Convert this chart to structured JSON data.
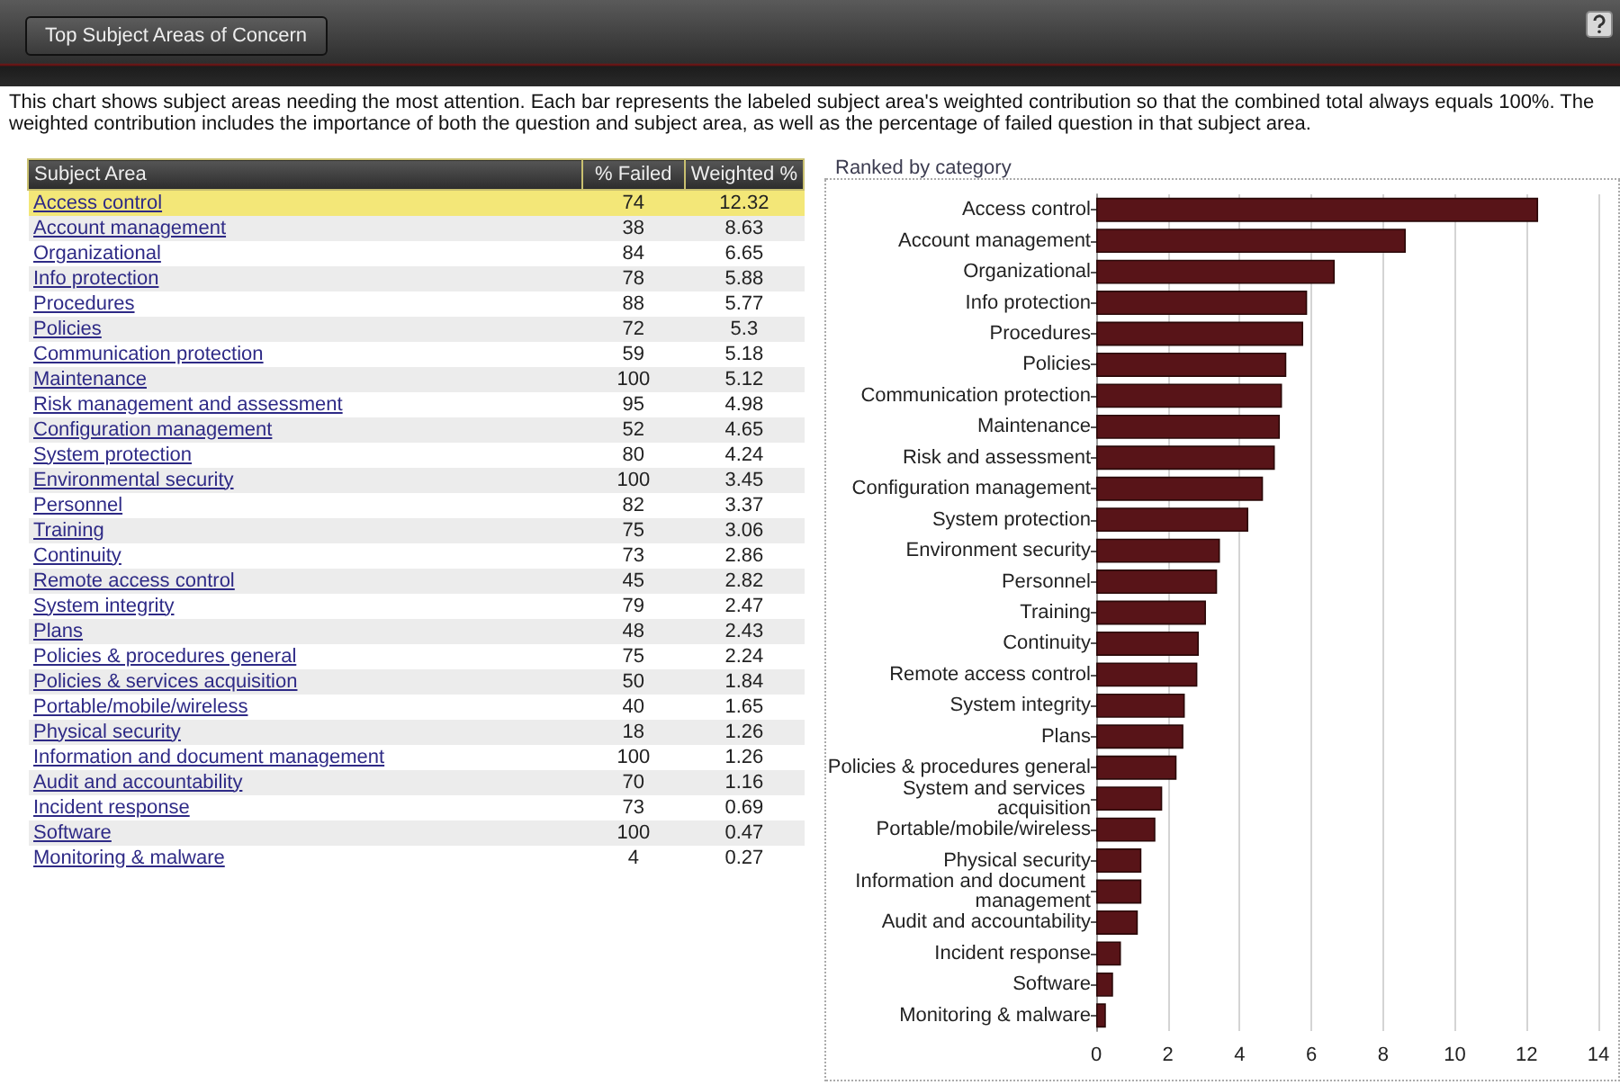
{
  "chart_data": [
    {
      "type": "other",
      "title": "Top Subject Areas of Concern",
      "subtitle": "This chart shows subject areas needing the most attention. Each bar represents the labeled subject area's weighted contribution so that the combined total always equals 100%. The weighted contribution includes the importance of both the question and subject area, as well as the percentage of failed question in that subject area.",
      "ylabel": "Subject Area",
      "categories": [
        "Access control",
        "Account management",
        "Organizational",
        "Info protection",
        "Procedures",
        "Policies",
        "Communication protection",
        "Maintenance",
        "Risk management and assessment",
        "Configuration management",
        "System protection",
        "Environmental security",
        "Personnel",
        "Training",
        "Continuity",
        "Remote access control",
        "System integrity",
        "Plans",
        "Policies & procedures general",
        "Policies & services acquisition",
        "Portable/mobile/wireless",
        "Physical security",
        "Information and document management",
        "Audit and accountability",
        "Incident response",
        "Software",
        "Monitoring & malware"
      ],
      "series": [
        {
          "name": "% Failed",
          "values": [
            74,
            38,
            84,
            78,
            88,
            72,
            59,
            100,
            95,
            52,
            80,
            100,
            82,
            75,
            73,
            45,
            79,
            48,
            75,
            50,
            40,
            18,
            100,
            70,
            73,
            100,
            4
          ],
          "colors": [
            "#f3e778",
            "#ececec",
            "#ffffff",
            "#ececec",
            "#ffffff",
            "#ececec",
            "#ffffff",
            "#ececec",
            "#ffffff",
            "#ececec",
            "#ffffff",
            "#ececec",
            "#ffffff",
            "#ececec",
            "#ffffff",
            "#ececec",
            "#ffffff",
            "#ececec",
            "#ffffff",
            "#ececec",
            "#ffffff",
            "#ececec",
            "#ffffff",
            "#ececec",
            "#ffffff",
            "#ececec",
            "#ffffff"
          ]
        },
        {
          "name": "Weighted %",
          "values": [
            12.32,
            8.63,
            6.65,
            5.88,
            5.77,
            5.3,
            5.18,
            5.12,
            4.98,
            4.65,
            4.24,
            3.45,
            3.37,
            3.06,
            2.86,
            2.82,
            2.47,
            2.43,
            2.24,
            1.84,
            1.65,
            1.26,
            1.26,
            1.16,
            0.69,
            0.47,
            0.27
          ],
          "colors": [
            "#f3e778",
            "#ececec",
            "#ffffff",
            "#ececec",
            "#ffffff",
            "#ececec",
            "#ffffff",
            "#ececec",
            "#ffffff",
            "#ececec",
            "#ffffff",
            "#ececec",
            "#ffffff",
            "#ececec",
            "#ffffff",
            "#ececec",
            "#ffffff",
            "#ececec",
            "#ffffff",
            "#ececec",
            "#ffffff",
            "#ececec",
            "#ffffff",
            "#ececec",
            "#ffffff",
            "#ececec",
            "#ffffff"
          ]
        }
      ],
      "data_labels": true
    },
    {
      "type": "bar",
      "orientation": "horizontal",
      "title": "Ranked by category",
      "categories": [
        "Access control",
        "Account management",
        "Organizational",
        "Info protection",
        "Procedures",
        "Policies",
        "Communication protection",
        "Maintenance",
        "Risk and assessment",
        "Configuration management",
        "System protection",
        "Environment security",
        "Personnel",
        "Training",
        "Continuity",
        "Remote access control",
        "System integrity",
        "Plans",
        "Policies & procedures general",
        "System and services acquisition",
        "Portable/mobile/wireless",
        "Physical security",
        "Information and document management",
        "Audit and accountability",
        "Incident response",
        "Software",
        "Monitoring & malware"
      ],
      "values": [
        12.32,
        8.63,
        6.65,
        5.88,
        5.77,
        5.3,
        5.18,
        5.12,
        4.98,
        4.65,
        4.24,
        3.45,
        3.37,
        3.06,
        2.86,
        2.82,
        2.47,
        2.43,
        2.24,
        1.84,
        1.65,
        1.26,
        1.26,
        1.16,
        0.69,
        0.47,
        0.27
      ],
      "color": "#581418",
      "xlim": [
        0,
        14
      ],
      "xticks": [
        0,
        2,
        4,
        6,
        8,
        10,
        12,
        14
      ],
      "grid": "x"
    }
  ]
}
